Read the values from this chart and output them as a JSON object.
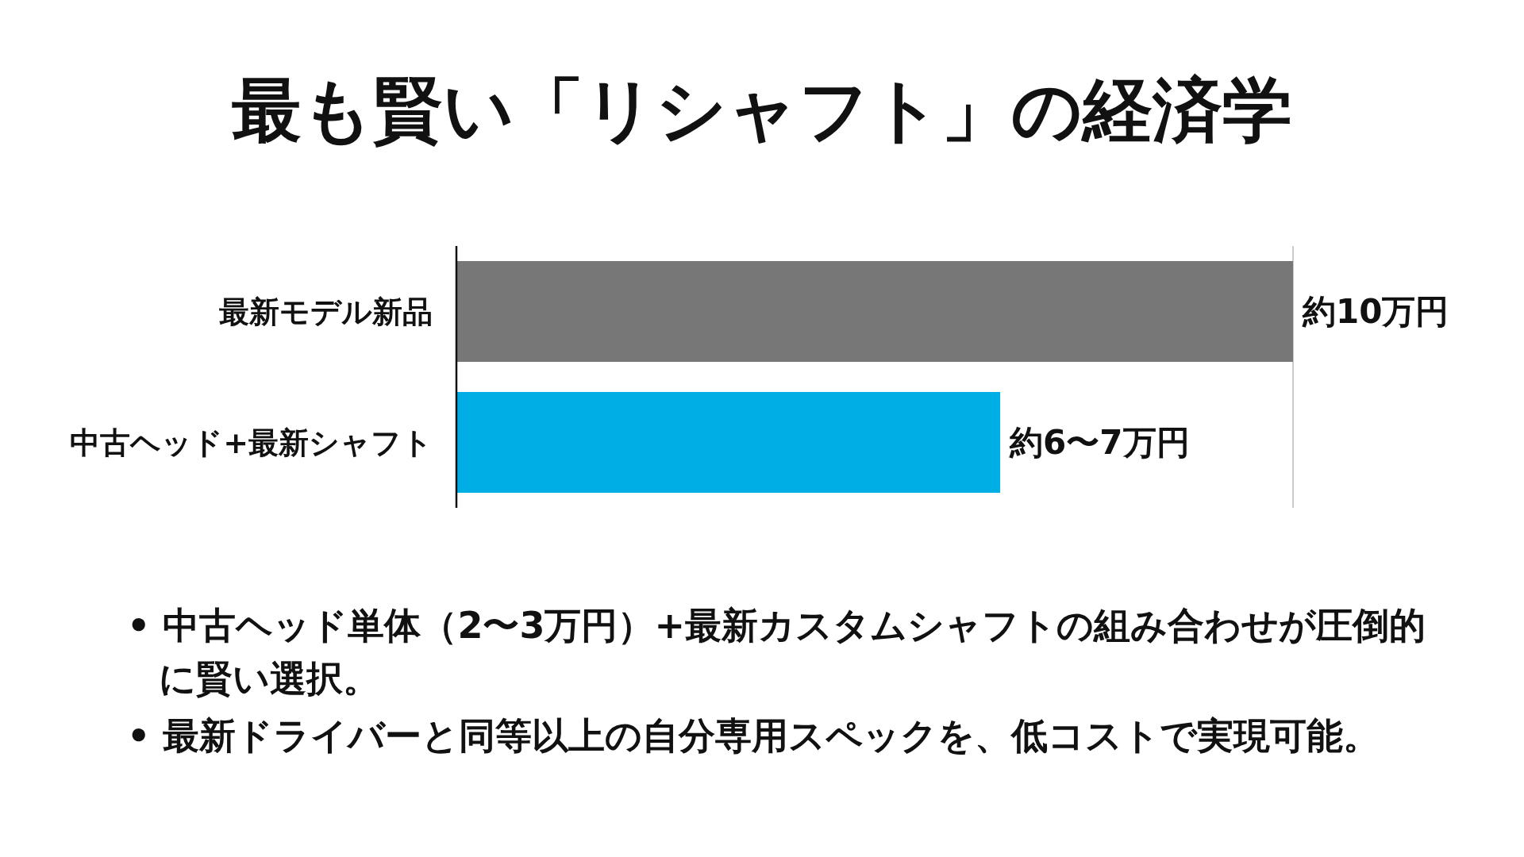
{
  "chart_data": {
    "type": "bar",
    "orientation": "horizontal",
    "title": "最も賢い「リシャフト」の経済学",
    "categories": [
      "最新モデル新品",
      "中古ヘッド+最新シャフト"
    ],
    "values": [
      10,
      6.5
    ],
    "colors": [
      "#777777",
      "#00aee6"
    ],
    "value_labels": [
      "約10万円",
      "約6〜7万円"
    ],
    "ref_lines": [
      {
        "axis": "x",
        "value": 10,
        "color": "#cccccc"
      }
    ],
    "annotations": [
      "• 中古ヘッド単体（2〜3万円）+最新カスタムシャフトの組み合わせが圧倒的に賢い選択。",
      "• 最新ドライバーと同等以上の自分専用スペックを、低コストで実現可能。"
    ]
  }
}
